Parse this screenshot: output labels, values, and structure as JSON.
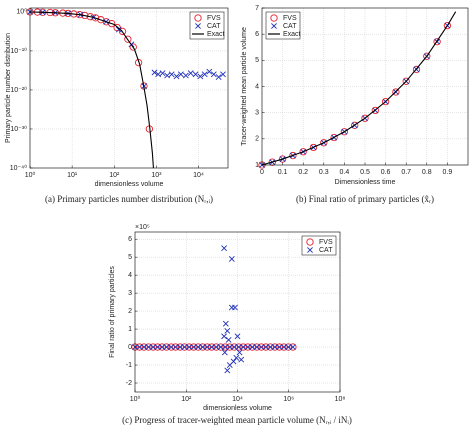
{
  "chart_data": [
    {
      "type": "scatter",
      "xscale": "log",
      "yscale": "log",
      "grid": true,
      "legend": "upper right",
      "xlabel": "dimensionless volume",
      "ylabel": "Primary particle number distribution",
      "caption": "(a) Primary particles number distribution (Nᵣ,ᵢ)",
      "xlim": [
        1,
        50000
      ],
      "ylim": [
        1e-40,
        10
      ],
      "xticks": [
        {
          "value": 1,
          "label": "10⁰"
        },
        {
          "value": 10,
          "label": "10¹"
        },
        {
          "value": 100,
          "label": "10²"
        },
        {
          "value": 1000,
          "label": "10³"
        },
        {
          "value": 10000,
          "label": "10⁴"
        }
      ],
      "yticks": [
        {
          "value": 1e-40,
          "label": "10⁻⁴⁰"
        },
        {
          "value": 1e-30,
          "label": "10⁻³⁰"
        },
        {
          "value": 1e-20,
          "label": "10⁻²⁰"
        },
        {
          "value": 1e-10,
          "label": "10⁻¹⁰"
        },
        {
          "value": 1,
          "label": "10⁰"
        }
      ],
      "series": [
        {
          "name": "FVS",
          "color": "#e8202a",
          "marker": "circle",
          "x": [
            1,
            1.5,
            2,
            3,
            4,
            6,
            8,
            11,
            15,
            20,
            27,
            36,
            48,
            65,
            87,
            117,
            157,
            210,
            282,
            378,
            507,
            680
          ],
          "values": [
            1,
            0.9,
            0.8,
            0.7,
            0.6,
            0.5,
            0.4,
            0.3,
            0.2,
            0.12,
            0.06,
            0.03,
            0.01,
            0.003,
            0.001,
            0.0001,
            1e-05,
            1e-07,
            1e-09,
            1e-13,
            1e-19,
            1e-30
          ]
        },
        {
          "name": "CAT",
          "color": "#1f2fb8",
          "marker": "cross",
          "x": [
            1,
            2,
            4,
            8,
            16,
            32,
            64,
            128,
            256,
            512,
            900,
            1100,
            1400,
            1800,
            2300,
            3000,
            3800,
            5000,
            6500,
            8500,
            11000,
            14000,
            18000,
            23000,
            30000,
            38000
          ],
          "values": [
            1,
            0.8,
            0.6,
            0.4,
            0.2,
            0.04,
            0.003,
            3e-05,
            5e-09,
            1e-19,
            3e-16,
            1e-16,
            2e-16,
            5e-17,
            1e-16,
            3e-17,
            1e-16,
            5e-17,
            2e-16,
            1e-16,
            3e-17,
            1e-16,
            5e-16,
            1e-16,
            2e-17,
            1e-16
          ]
        },
        {
          "name": "Exact",
          "color": "#000000",
          "marker": "line",
          "x": [
            1,
            2,
            4,
            8,
            16,
            32,
            64,
            100,
            150,
            200,
            300,
            400,
            500,
            600,
            700,
            800,
            850
          ],
          "values": [
            1,
            0.8,
            0.6,
            0.4,
            0.18,
            0.04,
            0.003,
            0.0006,
            1.5e-05,
            1.5e-07,
            3e-10,
            4e-14,
            1e-19,
            1e-24,
            1e-30,
            1e-36,
            1e-40
          ]
        }
      ]
    },
    {
      "type": "scatter",
      "xscale": "linear",
      "yscale": "linear",
      "grid": true,
      "legend": "upper left",
      "xlabel": "Dimensionless time",
      "ylabel": "Tracer-weighted mean particle volume",
      "caption": "(b) Final ratio of primary particles (x̂ᵣ)",
      "xlim": [
        0,
        1
      ],
      "ylim": [
        1,
        7
      ],
      "xticks": [
        0,
        0.1,
        0.2,
        0.3,
        0.4,
        0.5,
        0.6,
        0.7,
        0.8,
        0.9
      ],
      "yticks": [
        1,
        2,
        3,
        4,
        5,
        6,
        7
      ],
      "series": [
        {
          "name": "FVS",
          "color": "#e8202a",
          "marker": "circle",
          "x": [
            0,
            0.05,
            0.1,
            0.15,
            0.2,
            0.25,
            0.3,
            0.35,
            0.4,
            0.45,
            0.5,
            0.55,
            0.6,
            0.65,
            0.7,
            0.75,
            0.8,
            0.85,
            0.9
          ],
          "values": [
            1,
            1.108,
            1.227,
            1.36,
            1.507,
            1.67,
            1.85,
            2.05,
            2.27,
            2.516,
            2.787,
            3.088,
            3.421,
            3.79,
            4.199,
            4.652,
            5.155,
            5.711,
            6.327
          ]
        },
        {
          "name": "CAT",
          "color": "#1f2fb8",
          "marker": "cross",
          "x": [
            0,
            0.05,
            0.1,
            0.15,
            0.2,
            0.25,
            0.3,
            0.35,
            0.4,
            0.45,
            0.5,
            0.55,
            0.6,
            0.65,
            0.7,
            0.75,
            0.8,
            0.85,
            0.9
          ],
          "values": [
            1,
            1.108,
            1.227,
            1.36,
            1.507,
            1.67,
            1.85,
            2.05,
            2.27,
            2.516,
            2.787,
            3.088,
            3.421,
            3.79,
            4.199,
            4.652,
            5.155,
            5.711,
            6.327
          ]
        },
        {
          "name": "Exact",
          "color": "#000000",
          "marker": "line",
          "x": [
            0,
            0.1,
            0.2,
            0.3,
            0.4,
            0.5,
            0.6,
            0.7,
            0.8,
            0.9,
            0.94
          ],
          "values": [
            1,
            1.227,
            1.507,
            1.85,
            2.27,
            2.787,
            3.421,
            4.199,
            5.155,
            6.327,
            6.86
          ]
        }
      ]
    },
    {
      "type": "scatter",
      "xscale": "log",
      "yscale": "linear",
      "grid": true,
      "legend": "upper right",
      "xlabel": "dimensionless volume",
      "ylabel": "Final ratio of primary particles",
      "y_multiplier": "×10⁵",
      "caption": "(c) Progress of tracer-weighted mean particle volume (Nᵣ,ᵢ / iNᵢ)",
      "xlim": [
        1,
        100000000
      ],
      "ylim": [
        -2.5,
        6.4
      ],
      "xticks": [
        {
          "value": 1,
          "label": "10⁰"
        },
        {
          "value": 100,
          "label": "10²"
        },
        {
          "value": 10000,
          "label": "10⁴"
        },
        {
          "value": 1000000,
          "label": "10⁶"
        },
        {
          "value": 100000000,
          "label": "10⁸"
        }
      ],
      "yticks": [
        -2,
        -1,
        0,
        1,
        2,
        3,
        4,
        5,
        6
      ],
      "series": [
        {
          "name": "FVS",
          "color": "#e8202a",
          "marker": "circle",
          "x": [
            1,
            1.5,
            2.25,
            3.4,
            5.1,
            7.6,
            11.4,
            17,
            26,
            38,
            58,
            86,
            130,
            195,
            292,
            438,
            657,
            985,
            1478,
            2217,
            3325,
            4988,
            7482,
            11223,
            16834,
            25251,
            37877,
            56815,
            85223,
            127834,
            191751,
            287627,
            431440,
            647160,
            970740,
            1456110
          ],
          "values": [
            0,
            0,
            0,
            0,
            0,
            0,
            0,
            0,
            0,
            0,
            0,
            0,
            0,
            0,
            0,
            0,
            0,
            0,
            0,
            0,
            0,
            0,
            0,
            0,
            0,
            0,
            0,
            0,
            0,
            0,
            0,
            0,
            0,
            0,
            0,
            0
          ]
        },
        {
          "name": "CAT",
          "color": "#1f2fb8",
          "marker": "cross",
          "x": [
            1,
            1.5,
            2.25,
            3.4,
            5.1,
            7.6,
            11.4,
            17,
            26,
            38,
            58,
            86,
            130,
            195,
            292,
            438,
            657,
            985,
            1478,
            2217,
            3325,
            4988,
            7482,
            11223,
            16834,
            25251,
            37877,
            56815,
            85223,
            127834,
            191751,
            287627,
            431440,
            647160,
            970740,
            1456110,
            3000,
            3000,
            3200,
            3500,
            4000,
            4000,
            4500,
            5000,
            6000,
            6000,
            7000,
            8000,
            9000,
            10000,
            12000,
            14000
          ],
          "values": [
            0,
            0,
            0,
            0,
            0,
            0,
            0,
            0,
            0,
            0,
            0,
            0,
            0,
            0,
            0,
            0,
            0,
            0,
            0,
            0,
            0,
            0,
            0,
            0,
            0,
            0,
            0,
            0,
            0,
            0,
            0,
            0,
            0,
            0,
            0,
            0,
            5.5,
            0.6,
            -0.3,
            1.3,
            0.9,
            -1.3,
            0.4,
            -1,
            4.9,
            2.2,
            -0.8,
            2.2,
            -0.6,
            0.6,
            -0.3,
            -0.7
          ]
        }
      ]
    }
  ]
}
